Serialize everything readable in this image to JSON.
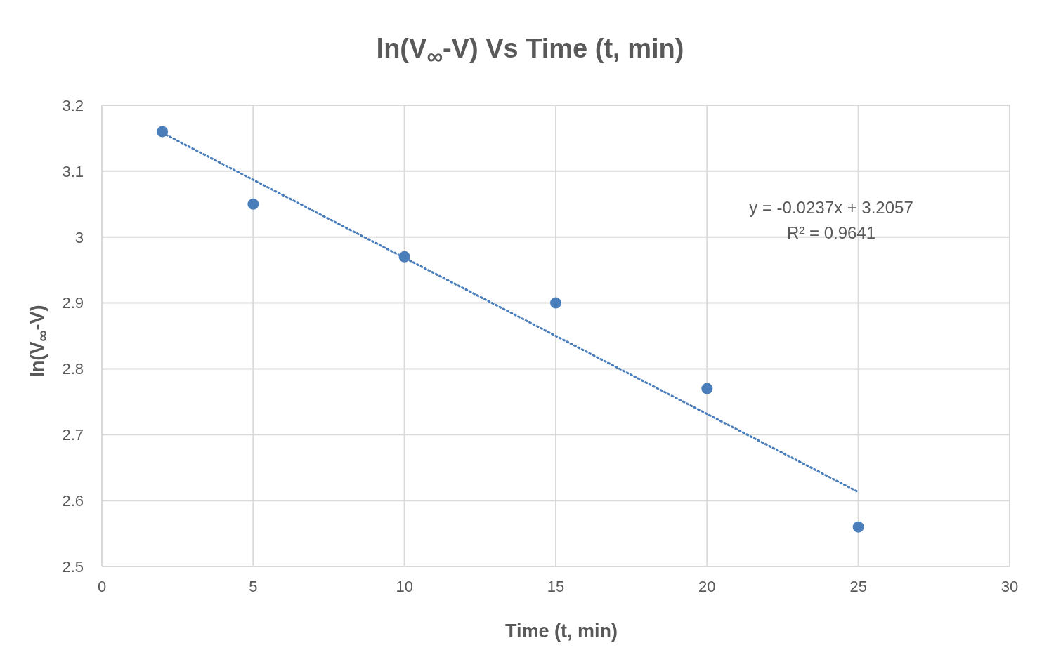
{
  "chart_data": {
    "type": "scatter",
    "title": "ln(V$_{∞}$-V) Vs Time (t, min)",
    "xlabel": "Time (t, min)",
    "ylabel": "ln(V$_{∞}$-V)",
    "x": [
      2,
      5,
      10,
      15,
      20,
      25
    ],
    "series": [
      {
        "type": "scatter",
        "color": "#4a7ebb",
        "values": [
          3.16,
          3.05,
          2.97,
          2.9,
          2.77,
          2.56
        ],
        "marker": "circle"
      },
      {
        "type": "line",
        "color": "#4a7ebb",
        "x": [
          2,
          25
        ],
        "values": [
          3.158,
          2.613
        ],
        "line_style": "dotted",
        "marker": "none"
      }
    ],
    "xlim": [
      0,
      30
    ],
    "xticks": [
      0,
      5,
      10,
      15,
      20,
      25,
      30
    ],
    "ylim": [
      2.5,
      3.2
    ],
    "yticks": [
      2.5,
      2.6,
      2.7,
      2.8,
      2.9,
      3,
      3.1,
      3.2
    ],
    "grid": true,
    "annotations": [
      "y = -0.0237x + 3.2057",
      "R² = 0.9641"
    ]
  }
}
